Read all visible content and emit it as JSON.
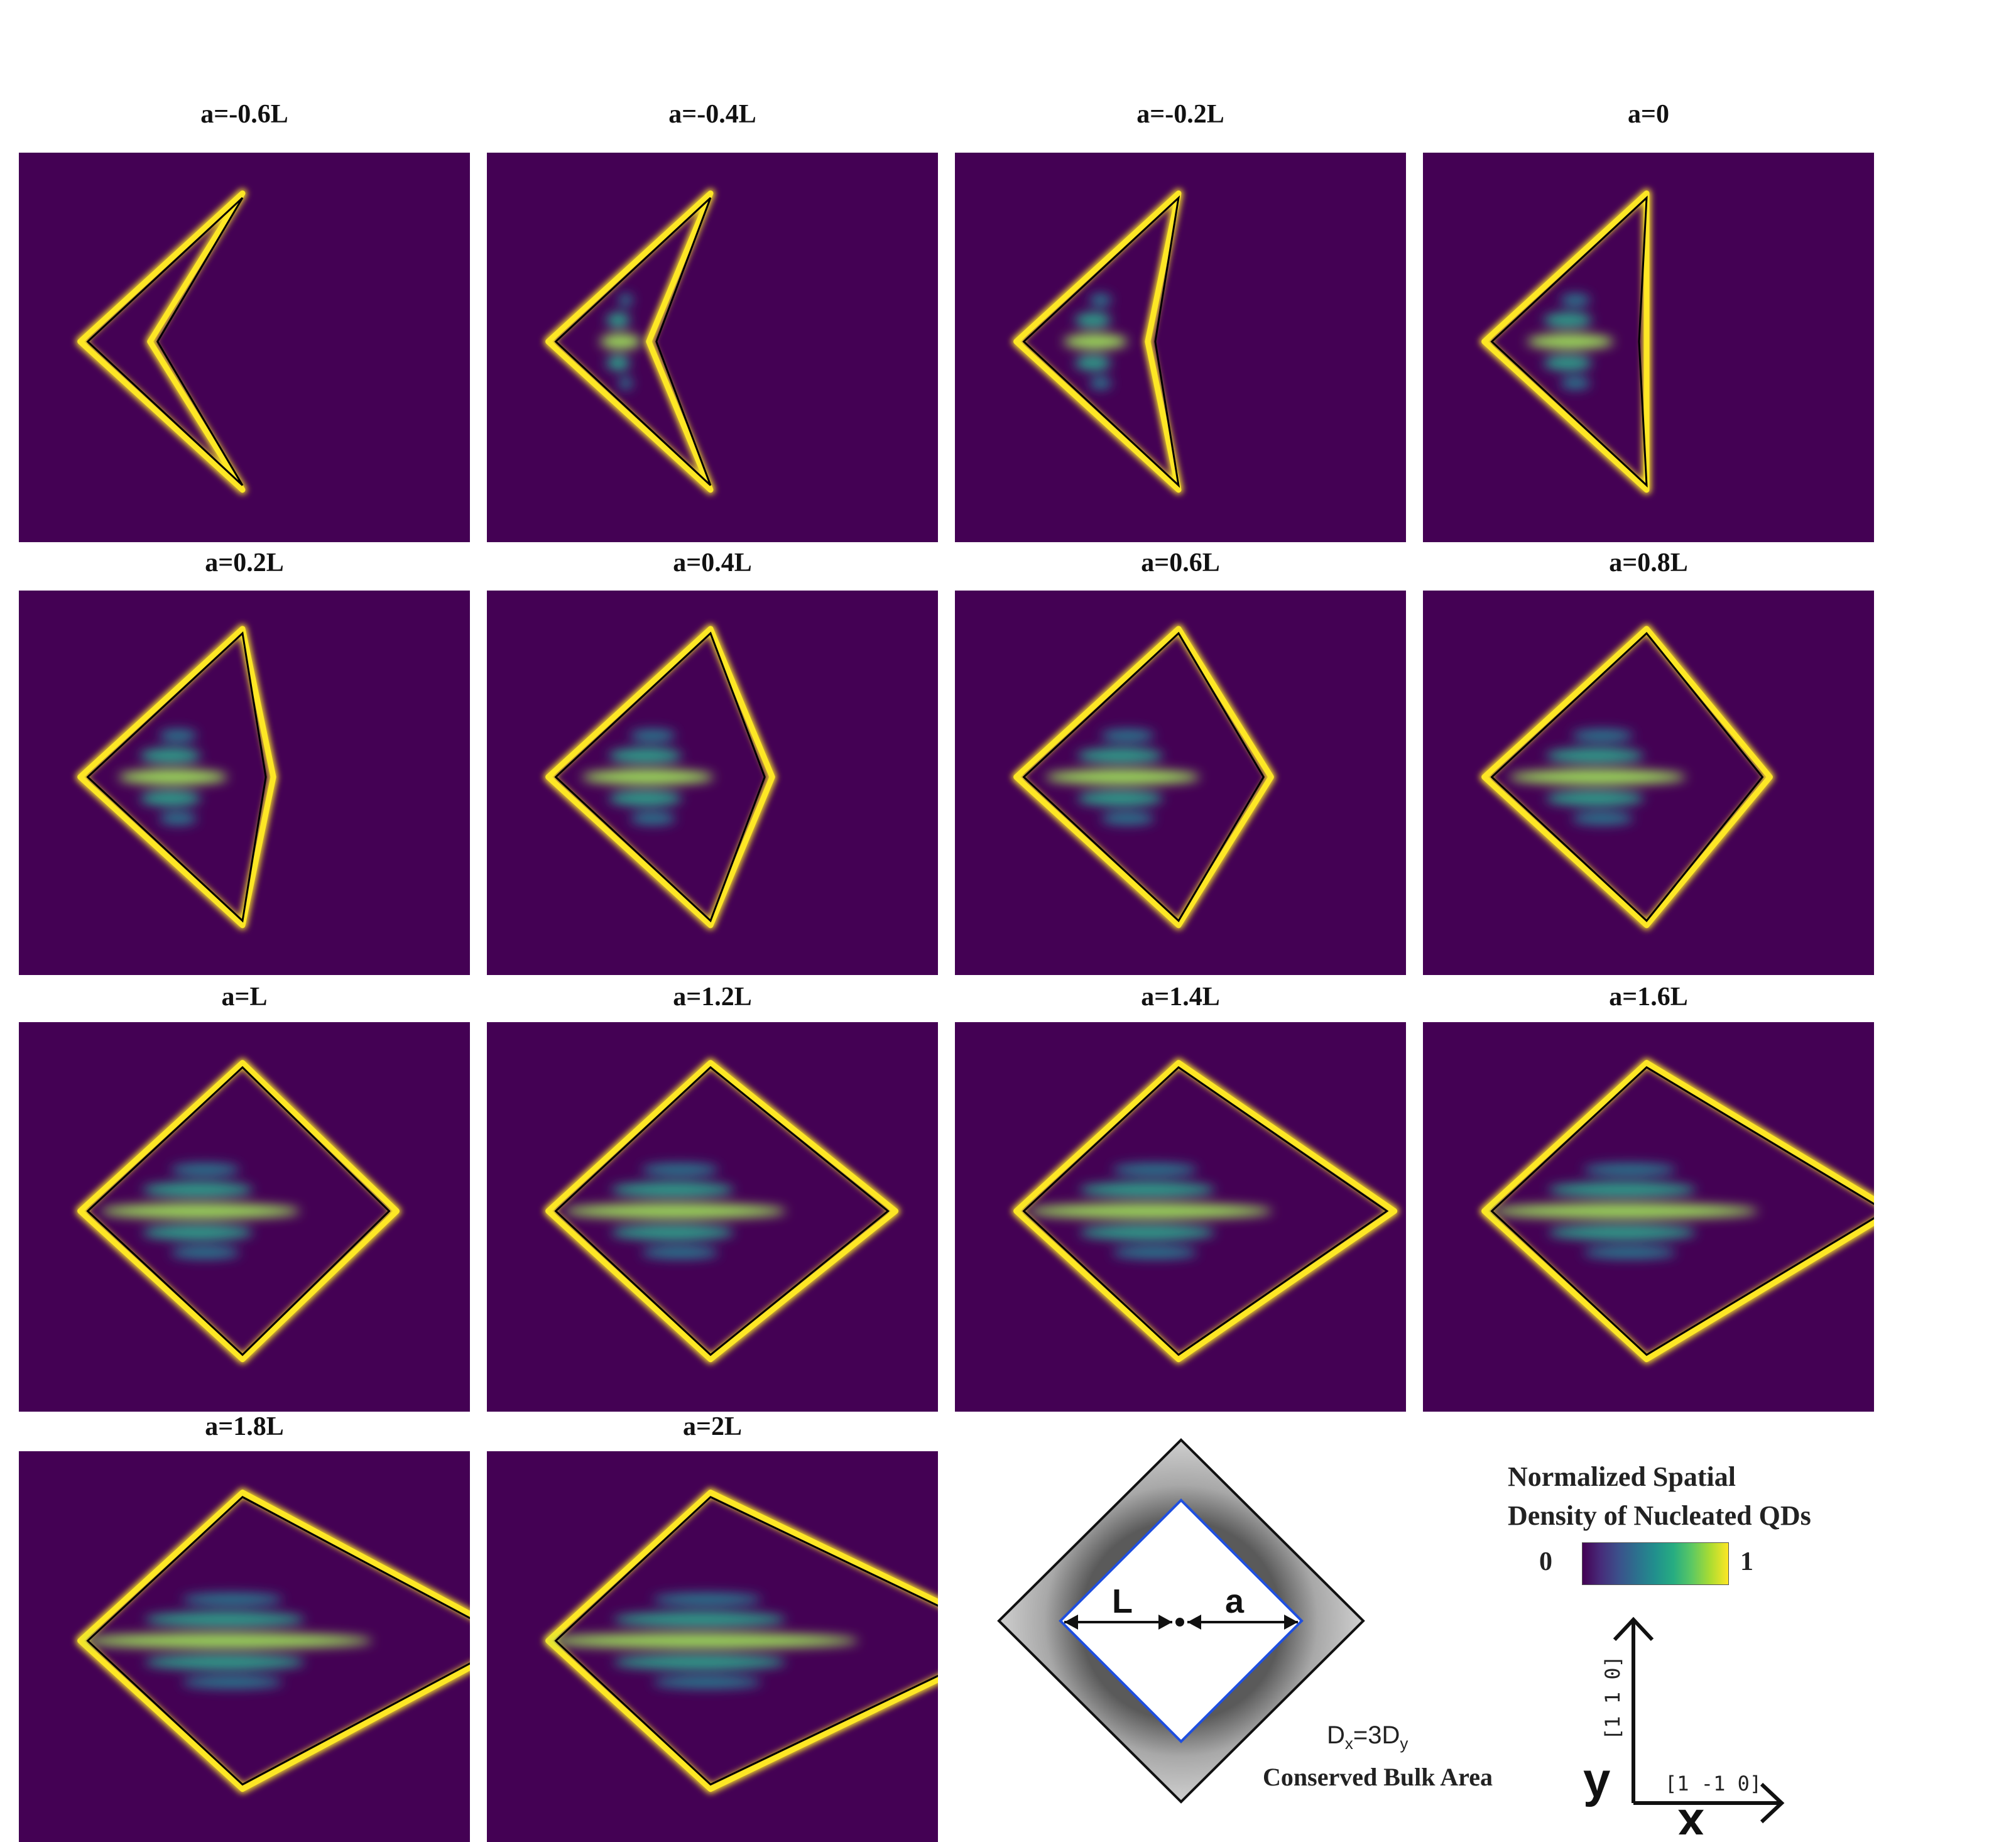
{
  "panels": [
    {
      "label": "a=-0.6L",
      "a": -0.6
    },
    {
      "label": "a=-0.4L",
      "a": -0.4
    },
    {
      "label": "a=-0.2L",
      "a": -0.2
    },
    {
      "label": "a=0",
      "a": 0
    },
    {
      "label": "a=0.2L",
      "a": 0.2
    },
    {
      "label": "a=0.4L",
      "a": 0.4
    },
    {
      "label": "a=0.6L",
      "a": 0.6
    },
    {
      "label": "a=0.8L",
      "a": 0.8
    },
    {
      "label": "a=L",
      "a": 1.0
    },
    {
      "label": "a=1.2L",
      "a": 1.2
    },
    {
      "label": "a=1.4L",
      "a": 1.4
    },
    {
      "label": "a=1.6L",
      "a": 1.6
    },
    {
      "label": "a=1.8L",
      "a": 1.8
    },
    {
      "label": "a=2L",
      "a": 2.0
    }
  ],
  "schematic": {
    "label_L": "L",
    "label_a": "a",
    "equation_main": "D",
    "equation_sub_x": "x",
    "equation_mid": "=3D",
    "equation_sub_y": "y",
    "caption": "Conserved Bulk Area"
  },
  "colorbar": {
    "title_line1": "Normalized Spatial",
    "title_line2": "Density of Nucleated QDs",
    "min_label": "0",
    "max_label": "1",
    "colormap": "viridis"
  },
  "axes": {
    "y_label": "y",
    "x_label": "x",
    "y_direction": "[1 1 0]",
    "x_direction": "[1 -1 0]"
  },
  "colors": {
    "background": "#440154",
    "edge_bright": "#fde725",
    "outline": "#000000",
    "schematic_shell": "#c8c8c8",
    "schematic_core_edge": "#1f4fe0"
  }
}
